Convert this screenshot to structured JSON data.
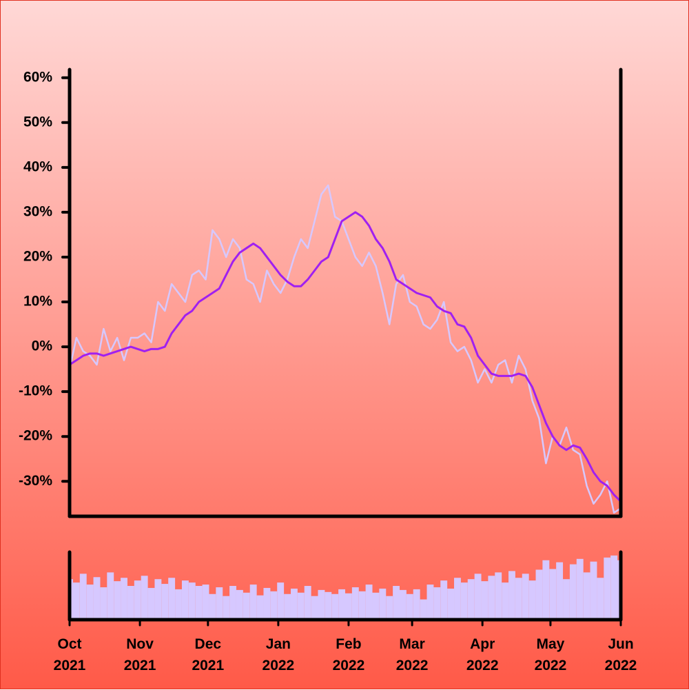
{
  "chart_data": [
    {
      "type": "line",
      "x": [
        0,
        3,
        6,
        9,
        12,
        15,
        18,
        21,
        24,
        27,
        30,
        33,
        36,
        39,
        42,
        45,
        48,
        51,
        54,
        57,
        60,
        63,
        66,
        69,
        72,
        75,
        78,
        81,
        84,
        87,
        90,
        93,
        96,
        99,
        102,
        105,
        108,
        111,
        114,
        117,
        120,
        123,
        126,
        129,
        132,
        135,
        138,
        141,
        144,
        147,
        150,
        153,
        156,
        159,
        162,
        165,
        168,
        171,
        174,
        177,
        180,
        183,
        186,
        189,
        192,
        195,
        198,
        201,
        204,
        207,
        210,
        213,
        216,
        219,
        222,
        225,
        228,
        231,
        234,
        237,
        240,
        243
      ],
      "xlim": [
        0,
        243
      ],
      "ylim": [
        -37.8,
        61.8
      ],
      "yticks": [
        {
          "value": -30,
          "label": "-30%"
        },
        {
          "value": -20,
          "label": "-20%"
        },
        {
          "value": -10,
          "label": "-10%"
        },
        {
          "value": 0,
          "label": "0%"
        },
        {
          "value": 10,
          "label": "10%"
        },
        {
          "value": 20,
          "label": "20%"
        },
        {
          "value": 30,
          "label": "30%"
        },
        {
          "value": 40,
          "label": "40%"
        },
        {
          "value": 50,
          "label": "50%"
        },
        {
          "value": 60,
          "label": "60%"
        }
      ],
      "series": [
        {
          "color": "#d6c8ff",
          "values": [
            -5,
            2,
            -1,
            -2,
            -4,
            4,
            -1,
            2,
            -3,
            2,
            2,
            3,
            1,
            10,
            8,
            14,
            12,
            10,
            16,
            17,
            15,
            26,
            24,
            20,
            24,
            22,
            15,
            14,
            10,
            17,
            14,
            12,
            15,
            20,
            24,
            22,
            28,
            34,
            36,
            29,
            28,
            24,
            20,
            18,
            21,
            18,
            12,
            5,
            14,
            16,
            10,
            9,
            5,
            4,
            6,
            10,
            1,
            -1,
            0,
            -3,
            -8,
            -5,
            -8,
            -4,
            -3,
            -8,
            -2,
            -5,
            -12,
            -16,
            -26,
            -20,
            -22,
            -18,
            -23,
            -24,
            -31,
            -35,
            -33,
            -30,
            -37,
            -36
          ]
        },
        {
          "color": "#a020f0",
          "values": [
            -4,
            -3,
            -2,
            -1.5,
            -1.5,
            -2,
            -1.5,
            -1,
            -0.5,
            0,
            -0.5,
            -1,
            -0.5,
            -0.5,
            0,
            3,
            5,
            7,
            8,
            10,
            11,
            12,
            13,
            16,
            19,
            21,
            22,
            23,
            22,
            20,
            18,
            16,
            14.5,
            13.5,
            13.5,
            15,
            17,
            19,
            20,
            24,
            28,
            29,
            30,
            29,
            27,
            24,
            22,
            19,
            15,
            14,
            13,
            12,
            11.5,
            11,
            9,
            8,
            7.5,
            5,
            4.5,
            2,
            -2,
            -4,
            -6,
            -6.5,
            -6.5,
            -6.5,
            -6,
            -6.5,
            -9,
            -13,
            -17,
            -20,
            -22,
            -23,
            -22,
            -22.5,
            -25,
            -28,
            -30,
            -31,
            -33,
            -34.5
          ]
        }
      ]
    },
    {
      "type": "bar",
      "x": [
        0,
        3,
        6,
        9,
        12,
        15,
        18,
        21,
        24,
        27,
        30,
        33,
        36,
        39,
        42,
        45,
        48,
        51,
        54,
        57,
        60,
        63,
        66,
        69,
        72,
        75,
        78,
        81,
        84,
        87,
        90,
        93,
        96,
        99,
        102,
        105,
        108,
        111,
        114,
        117,
        120,
        123,
        126,
        129,
        132,
        135,
        138,
        141,
        144,
        147,
        150,
        153,
        156,
        159,
        162,
        165,
        168,
        171,
        174,
        177,
        180,
        183,
        186,
        189,
        192,
        195,
        198,
        201,
        204,
        207,
        210,
        213,
        216,
        219,
        222,
        225,
        228,
        231,
        234,
        237,
        240,
        243
      ],
      "values": [
        60,
        55,
        68,
        52,
        63,
        48,
        70,
        57,
        62,
        50,
        58,
        65,
        47,
        60,
        53,
        62,
        45,
        58,
        55,
        50,
        52,
        38,
        48,
        35,
        50,
        44,
        40,
        52,
        36,
        47,
        42,
        55,
        38,
        46,
        40,
        50,
        35,
        44,
        41,
        38,
        45,
        39,
        48,
        42,
        52,
        40,
        46,
        35,
        50,
        44,
        38,
        45,
        30,
        52,
        48,
        58,
        46,
        62,
        55,
        60,
        68,
        57,
        65,
        70,
        55,
        72,
        62,
        68,
        58,
        74,
        88,
        75,
        85,
        60,
        82,
        90,
        70,
        86,
        62,
        92,
        95,
        88
      ],
      "color": "#d6c8ff",
      "xlim": [
        0,
        243
      ],
      "ylim": [
        0,
        100
      ],
      "xticks": [
        {
          "value": 0,
          "label": "Oct 2021"
        },
        {
          "value": 31,
          "label": "Nov 2021"
        },
        {
          "value": 61,
          "label": "Dec 2021"
        },
        {
          "value": 92,
          "label": "Jan 2022"
        },
        {
          "value": 123,
          "label": "Feb 2022"
        },
        {
          "value": 151,
          "label": "Mar 2022"
        },
        {
          "value": 182,
          "label": "Apr 2022"
        },
        {
          "value": 212,
          "label": "May 2022"
        },
        {
          "value": 243,
          "label": "Jun 2022"
        }
      ]
    }
  ]
}
